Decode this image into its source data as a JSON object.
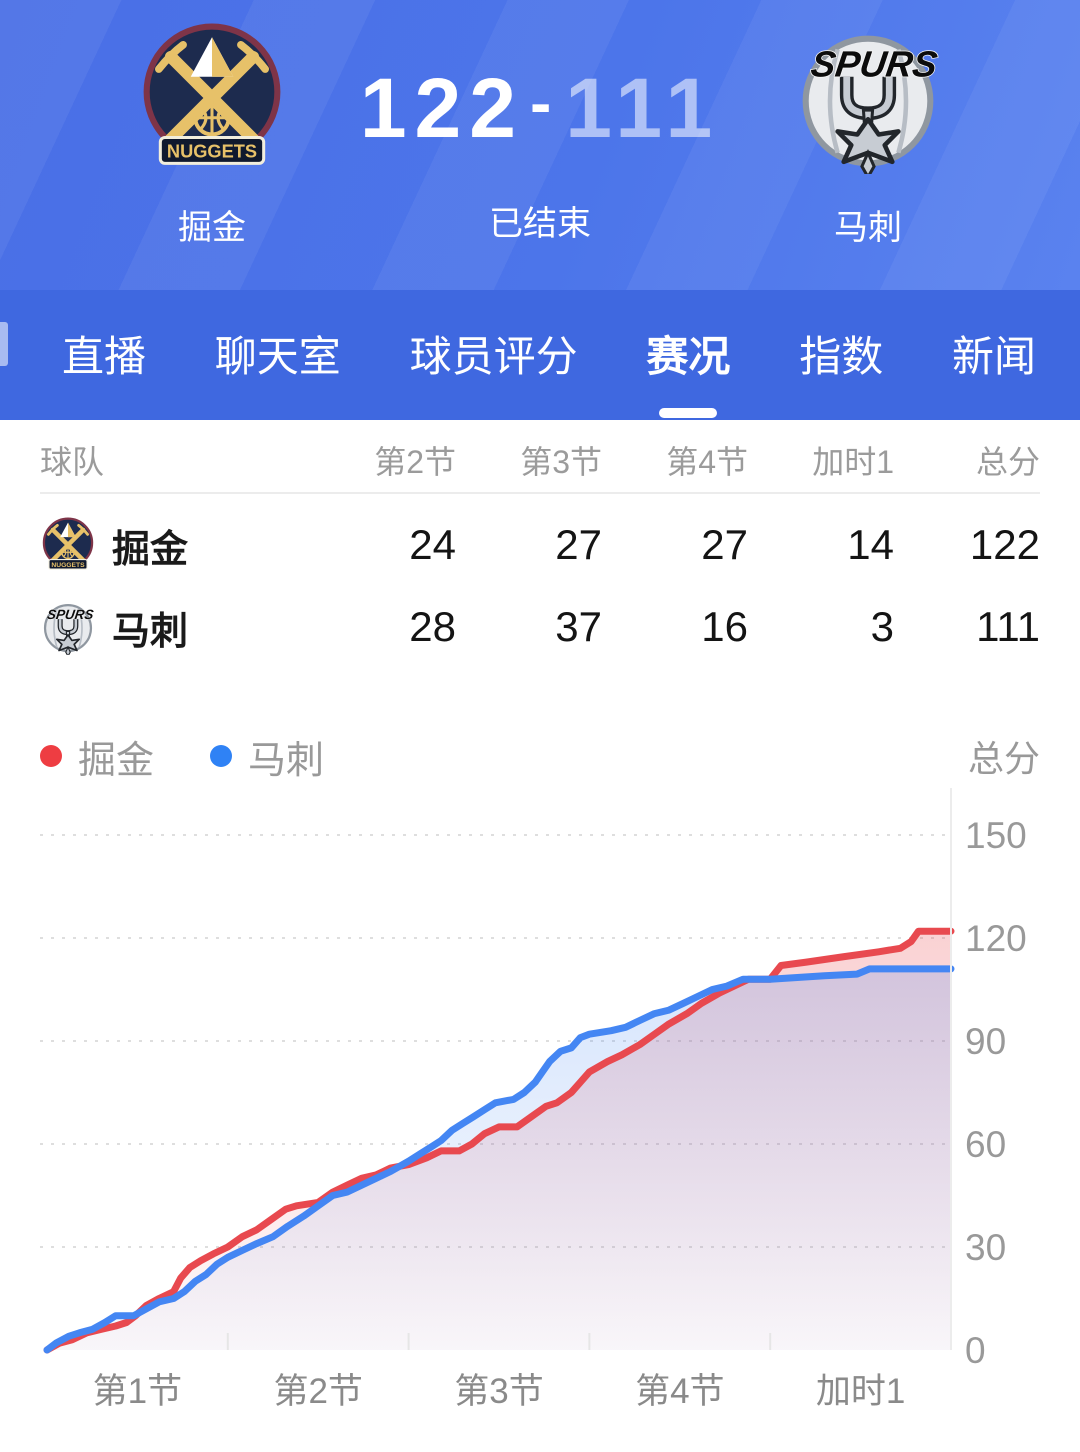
{
  "header": {
    "home_team": "掘金",
    "away_team": "马刺",
    "home_score": "122",
    "score_separator": "-",
    "away_score": "111",
    "status": "已结束",
    "home_wordmark": "NUGGETS",
    "away_wordmark": "SPURS"
  },
  "tabs": {
    "items": [
      {
        "label": "直播",
        "active": false
      },
      {
        "label": "聊天室",
        "active": false
      },
      {
        "label": "球员评分",
        "active": false
      },
      {
        "label": "赛况",
        "active": true
      },
      {
        "label": "指数",
        "active": false
      },
      {
        "label": "新闻",
        "active": false
      }
    ]
  },
  "table": {
    "columns": [
      "球队",
      "第2节",
      "第3节",
      "第4节",
      "加时1",
      "总分"
    ],
    "rows": [
      {
        "team": "掘金",
        "logo": "nuggets",
        "values": [
          "24",
          "27",
          "27",
          "14",
          "122"
        ]
      },
      {
        "team": "马刺",
        "logo": "spurs",
        "values": [
          "28",
          "37",
          "16",
          "3",
          "111"
        ]
      }
    ]
  },
  "legend": {
    "items": [
      {
        "label": "掘金",
        "color": "#ee3d42"
      },
      {
        "label": "马刺",
        "color": "#2f82f5"
      }
    ],
    "axis_title": "总分"
  },
  "colors": {
    "header_blue": "#4c75ea",
    "tabbar_blue": "#3f68e0",
    "nuggets_red": "#e8494f",
    "spurs_blue": "#4486f3",
    "grid_gray": "#dedede",
    "label_gray": "#999999"
  },
  "chart_data": {
    "type": "line",
    "title": "",
    "xlabel": "",
    "ylabel": "总分",
    "x_categories": [
      "第1节",
      "第2节",
      "第3节",
      "第4节",
      "加时1"
    ],
    "y_ticks": [
      0,
      30,
      60,
      90,
      120,
      150
    ],
    "ylim": [
      0,
      165
    ],
    "grid": "dashed-horizontal",
    "legend_position": "top-left",
    "series": [
      {
        "name": "掘金",
        "color": "#e8494f",
        "final_score": 122,
        "quarter_end_totals": [
          30,
          54,
          81,
          108,
          122
        ],
        "points": [
          [
            0,
            0
          ],
          [
            0.07,
            2
          ],
          [
            0.14,
            3
          ],
          [
            0.22,
            5
          ],
          [
            0.3,
            6
          ],
          [
            0.38,
            7
          ],
          [
            0.44,
            8
          ],
          [
            0.49,
            10
          ],
          [
            0.55,
            13
          ],
          [
            0.62,
            15
          ],
          [
            0.7,
            17
          ],
          [
            0.74,
            21
          ],
          [
            0.79,
            24
          ],
          [
            0.85,
            26
          ],
          [
            0.92,
            28
          ],
          [
            1.0,
            30
          ],
          [
            1.08,
            33
          ],
          [
            1.16,
            35
          ],
          [
            1.24,
            38
          ],
          [
            1.32,
            41
          ],
          [
            1.38,
            42
          ],
          [
            1.5,
            43
          ],
          [
            1.58,
            46
          ],
          [
            1.66,
            48
          ],
          [
            1.74,
            50
          ],
          [
            1.82,
            51
          ],
          [
            1.9,
            53
          ],
          [
            2.0,
            54
          ],
          [
            2.1,
            56
          ],
          [
            2.18,
            58
          ],
          [
            2.28,
            58
          ],
          [
            2.35,
            60
          ],
          [
            2.42,
            63
          ],
          [
            2.5,
            65
          ],
          [
            2.6,
            65
          ],
          [
            2.68,
            68
          ],
          [
            2.76,
            71
          ],
          [
            2.82,
            72
          ],
          [
            2.9,
            75
          ],
          [
            2.95,
            78
          ],
          [
            3.0,
            81
          ],
          [
            3.1,
            84
          ],
          [
            3.18,
            86
          ],
          [
            3.28,
            89
          ],
          [
            3.36,
            92
          ],
          [
            3.44,
            95
          ],
          [
            3.54,
            98
          ],
          [
            3.62,
            101
          ],
          [
            3.72,
            104
          ],
          [
            3.8,
            106
          ],
          [
            3.88,
            108
          ],
          [
            4.0,
            108
          ],
          [
            4.06,
            112
          ],
          [
            4.2,
            113
          ],
          [
            4.4,
            114.5
          ],
          [
            4.6,
            116
          ],
          [
            4.72,
            117
          ],
          [
            4.78,
            119
          ],
          [
            4.82,
            122
          ],
          [
            5.0,
            122
          ]
        ]
      },
      {
        "name": "马刺",
        "color": "#4486f3",
        "final_score": 111,
        "quarter_end_totals": [
          27,
          55,
          92,
          108,
          111
        ],
        "points": [
          [
            0,
            0
          ],
          [
            0.05,
            2
          ],
          [
            0.12,
            4
          ],
          [
            0.18,
            5
          ],
          [
            0.25,
            6
          ],
          [
            0.32,
            8
          ],
          [
            0.38,
            10
          ],
          [
            0.48,
            10
          ],
          [
            0.55,
            12
          ],
          [
            0.62,
            14
          ],
          [
            0.7,
            15
          ],
          [
            0.76,
            17
          ],
          [
            0.82,
            20
          ],
          [
            0.88,
            22
          ],
          [
            0.94,
            25
          ],
          [
            1.0,
            27
          ],
          [
            1.08,
            29
          ],
          [
            1.16,
            31
          ],
          [
            1.25,
            33
          ],
          [
            1.33,
            36
          ],
          [
            1.42,
            39
          ],
          [
            1.5,
            42
          ],
          [
            1.58,
            45
          ],
          [
            1.66,
            46
          ],
          [
            1.74,
            48
          ],
          [
            1.82,
            50
          ],
          [
            1.9,
            52
          ],
          [
            2.0,
            55
          ],
          [
            2.06,
            57
          ],
          [
            2.12,
            59
          ],
          [
            2.18,
            61
          ],
          [
            2.24,
            64
          ],
          [
            2.3,
            66
          ],
          [
            2.36,
            68
          ],
          [
            2.42,
            70
          ],
          [
            2.48,
            72
          ],
          [
            2.58,
            73
          ],
          [
            2.64,
            75
          ],
          [
            2.7,
            78
          ],
          [
            2.74,
            81
          ],
          [
            2.78,
            84
          ],
          [
            2.84,
            87
          ],
          [
            2.9,
            88
          ],
          [
            2.95,
            91
          ],
          [
            3.0,
            92
          ],
          [
            3.12,
            93
          ],
          [
            3.2,
            94
          ],
          [
            3.28,
            96
          ],
          [
            3.36,
            98
          ],
          [
            3.44,
            99
          ],
          [
            3.52,
            101
          ],
          [
            3.6,
            103
          ],
          [
            3.68,
            105
          ],
          [
            3.76,
            106
          ],
          [
            3.85,
            108
          ],
          [
            4.0,
            108
          ],
          [
            4.15,
            108.5
          ],
          [
            4.3,
            109
          ],
          [
            4.48,
            109.5
          ],
          [
            4.55,
            111
          ],
          [
            5.0,
            111
          ]
        ]
      }
    ]
  }
}
